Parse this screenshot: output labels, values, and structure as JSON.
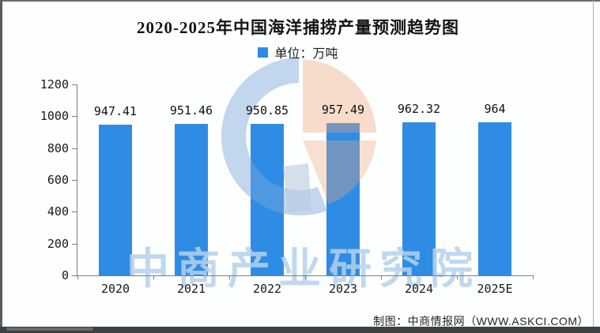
{
  "header": {
    "title": "2020-2025年中国海洋捕捞产量预测趋势图"
  },
  "legend": {
    "label": "单位：万吨",
    "swatch_color": "#2f8ce4"
  },
  "chart_data": {
    "type": "bar",
    "title": "2020-2025年中国海洋捕捞产量预测趋势图",
    "legend": [
      "单位：万吨"
    ],
    "legend_position": "top-center",
    "unit": "万吨",
    "categories": [
      "2020",
      "2021",
      "2022",
      "2023",
      "2024",
      "2025E"
    ],
    "values": [
      947.41,
      951.46,
      950.85,
      957.49,
      962.32,
      964
    ],
    "value_labels": [
      "947.41",
      "951.46",
      "950.85",
      "957.49",
      "962.32",
      "964"
    ],
    "ylim": [
      0,
      1200
    ],
    "yticks": [
      0,
      200,
      400,
      600,
      800,
      1000,
      1200
    ],
    "grid": false,
    "bar_color": "#2f8ce4"
  },
  "watermark": {
    "text": "中商产业研究院",
    "text_color": "rgba(181,209,236,0.85)",
    "logo_ring_color": "#7ba7d9",
    "logo_peach_color": "#eda67c",
    "logo_gray_color": "#b9c9dd"
  },
  "footer": {
    "caption": "制图：中商情报网（WWW.ASKCI.COM）"
  }
}
